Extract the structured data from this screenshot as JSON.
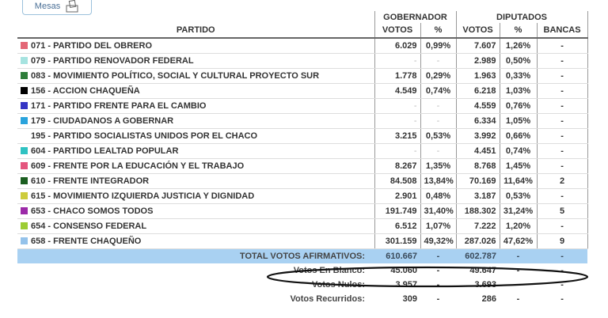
{
  "button": {
    "label": "Mesas"
  },
  "table": {
    "header": {
      "party": "PARTIDO",
      "governor": "GOBERNADOR",
      "deputies": "DIPUTADOS",
      "columns": [
        "VOTOS",
        "%",
        "VOTOS",
        "%",
        "BANCAS"
      ]
    },
    "rows": [
      {
        "party": "071 - PARTIDO DEL OBRERO",
        "color": "#e36676",
        "cells": [
          "6.029",
          "0,99%",
          "7.607",
          "1,26%",
          "-"
        ]
      },
      {
        "party": "079 - PARTIDO RENOVADOR FEDERAL",
        "color": "#a6e3e0",
        "cells": [
          "-",
          "-",
          "2.989",
          "0,50%",
          "-"
        ]
      },
      {
        "party": "083 - MOVIMIENTO POLÍTICO, SOCIAL Y CULTURAL PROYECTO SUR",
        "color": "#2e7d3a",
        "cells": [
          "1.778",
          "0,29%",
          "1.963",
          "0,33%",
          "-"
        ]
      },
      {
        "party": "156 - ACCION CHAQUEÑA",
        "color": "#000000",
        "cells": [
          "4.549",
          "0,74%",
          "6.218",
          "1,03%",
          "-"
        ]
      },
      {
        "party": "171 - PARTIDO FRENTE PARA EL CAMBIO",
        "color": "#3434c4",
        "cells": [
          "-",
          "-",
          "4.559",
          "0,76%",
          "-"
        ]
      },
      {
        "party": "179 - CIUDADANOS A GOBERNAR",
        "color": "#2aa3dc",
        "cells": [
          "-",
          "-",
          "6.334",
          "1,05%",
          "-"
        ]
      },
      {
        "party": "195 - PARTIDO SOCIALISTAS UNIDOS POR EL CHACO",
        "cells": [
          "3.215",
          "0,53%",
          "3.992",
          "0,66%",
          "-"
        ]
      },
      {
        "party": "604 - PARTIDO LEALTAD POPULAR",
        "color": "#2fc2c2",
        "cells": [
          "-",
          "-",
          "4.451",
          "0,74%",
          "-"
        ]
      },
      {
        "party": "609 - FRENTE POR LA EDUCACIÓN Y EL TRABAJO",
        "color": "#e4567e",
        "cells": [
          "8.267",
          "1,35%",
          "8.768",
          "1,45%",
          "-"
        ]
      },
      {
        "party": "610 - FRENTE INTEGRADOR",
        "color": "#1b5e20",
        "cells": [
          "84.508",
          "13,84%",
          "70.169",
          "11,64%",
          "2"
        ]
      },
      {
        "party": "615 - MOVIMIENTO IZQUIERDA JUSTICIA Y DIGNIDAD",
        "color": "#cdcc3c",
        "cells": [
          "2.901",
          "0,48%",
          "3.187",
          "0,53%",
          "-"
        ]
      },
      {
        "party": "653 - CHACO SOMOS TODOS",
        "color": "#9c2aa8",
        "cells": [
          "191.749",
          "31,40%",
          "188.302",
          "31,24%",
          "5"
        ]
      },
      {
        "party": "654 - CONSENSO FEDERAL",
        "color": "#9ccc34",
        "cells": [
          "6.512",
          "1,07%",
          "7.222",
          "1,20%",
          "-"
        ]
      },
      {
        "party": "658 - FRENTE CHAQUEÑO",
        "color": "#94c2ea",
        "cells": [
          "301.159",
          "49,32%",
          "287.026",
          "47,62%",
          "9"
        ]
      }
    ],
    "totals": [
      {
        "label": "TOTAL VOTOS AFIRMATIVOS:",
        "cells": [
          "610.667",
          "-",
          "602.787",
          "-",
          "-"
        ]
      },
      {
        "label": "Votos En Blanco:",
        "cells": [
          "45.060",
          "-",
          "49.647",
          "-",
          "-"
        ]
      },
      {
        "label": "Votos Nulos:",
        "cells": [
          "3.957",
          "-",
          "3.693",
          "-",
          "-"
        ]
      },
      {
        "label": "Votos Recurridos:",
        "cells": [
          "309",
          "-",
          "286",
          "-",
          "-"
        ]
      }
    ]
  }
}
